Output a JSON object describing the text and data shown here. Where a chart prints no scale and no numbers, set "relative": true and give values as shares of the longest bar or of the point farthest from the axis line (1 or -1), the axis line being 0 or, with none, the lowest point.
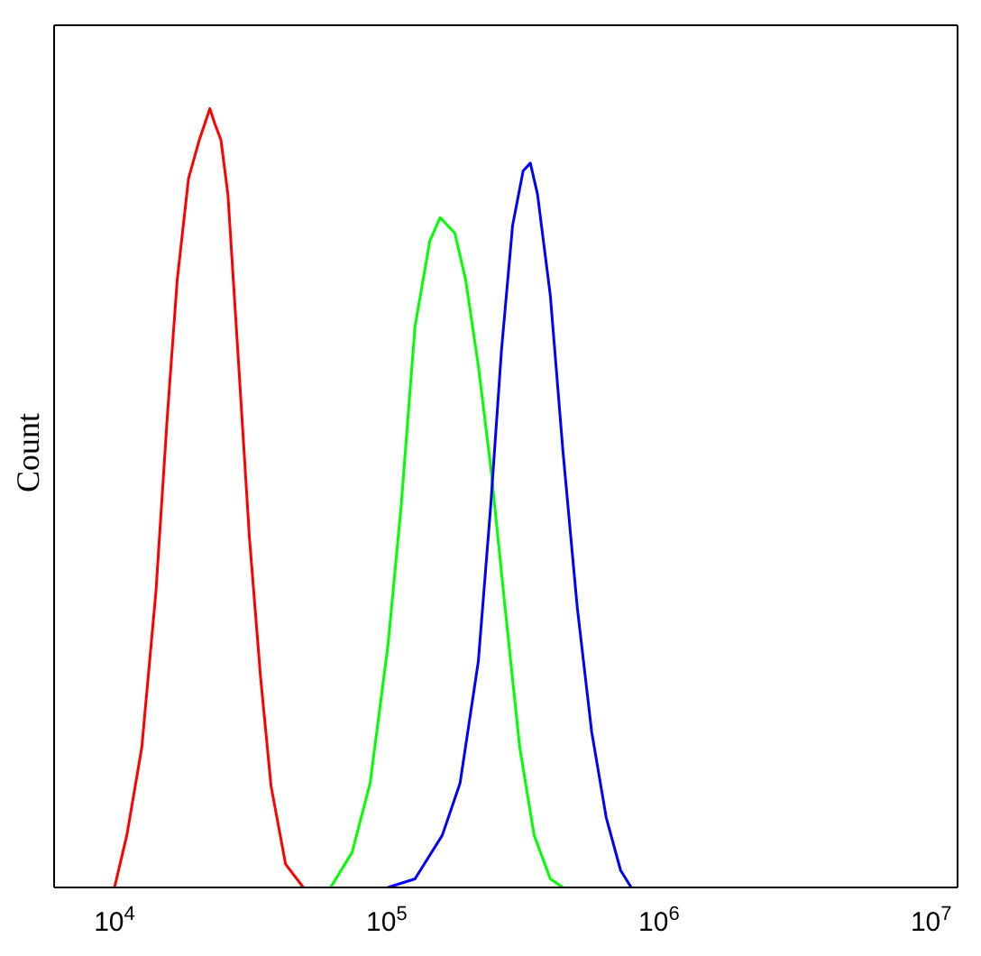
{
  "chart_data": {
    "type": "line",
    "ylabel": "Count",
    "relative": true,
    "log": "x",
    "xlim": [
      6000,
      12500000
    ],
    "xticks": [
      {
        "value": 10000,
        "label": "10$^{4}$"
      },
      {
        "value": 100000,
        "label": "10$^{5}$"
      },
      {
        "value": 1000000,
        "label": "10$^{6}$"
      },
      {
        "value": 10000000,
        "label": "10$^{7}$"
      }
    ],
    "grid": false,
    "marker": "none",
    "line_style": "solid",
    "series": [
      {
        "color": "#ff0000",
        "x": [
          10000,
          11100,
          12600,
          14200,
          15600,
          17000,
          18700,
          20500,
          22400,
          23400,
          24600,
          26100,
          28600,
          31300,
          34400,
          37600,
          42500,
          49400
        ],
        "values": [
          0,
          0.067,
          0.18,
          0.38,
          0.6,
          0.78,
          0.91,
          0.96,
          1.0,
          0.98,
          0.96,
          0.89,
          0.67,
          0.45,
          0.27,
          0.13,
          0.03,
          0
        ]
      },
      {
        "color": "#00ff00",
        "x": [
          62200,
          74600,
          86900,
          101000,
          113000,
          127000,
          144000,
          157000,
          178000,
          195000,
          217000,
          241000,
          272000,
          308000,
          348000,
          399000,
          444000
        ],
        "values": [
          0,
          0.045,
          0.134,
          0.31,
          0.49,
          0.72,
          0.83,
          0.86,
          0.84,
          0.78,
          0.67,
          0.54,
          0.36,
          0.18,
          0.067,
          0.011,
          0
        ]
      },
      {
        "color": "#0000ff",
        "x": [
          101000,
          127000,
          160000,
          186000,
          217000,
          241000,
          264000,
          290000,
          317000,
          337000,
          358000,
          399000,
          444000,
          501000,
          566000,
          640000,
          723000,
          791000
        ],
        "values": [
          0,
          0.011,
          0.067,
          0.134,
          0.29,
          0.49,
          0.69,
          0.85,
          0.92,
          0.93,
          0.89,
          0.76,
          0.56,
          0.36,
          0.2,
          0.09,
          0.022,
          0
        ]
      }
    ]
  }
}
